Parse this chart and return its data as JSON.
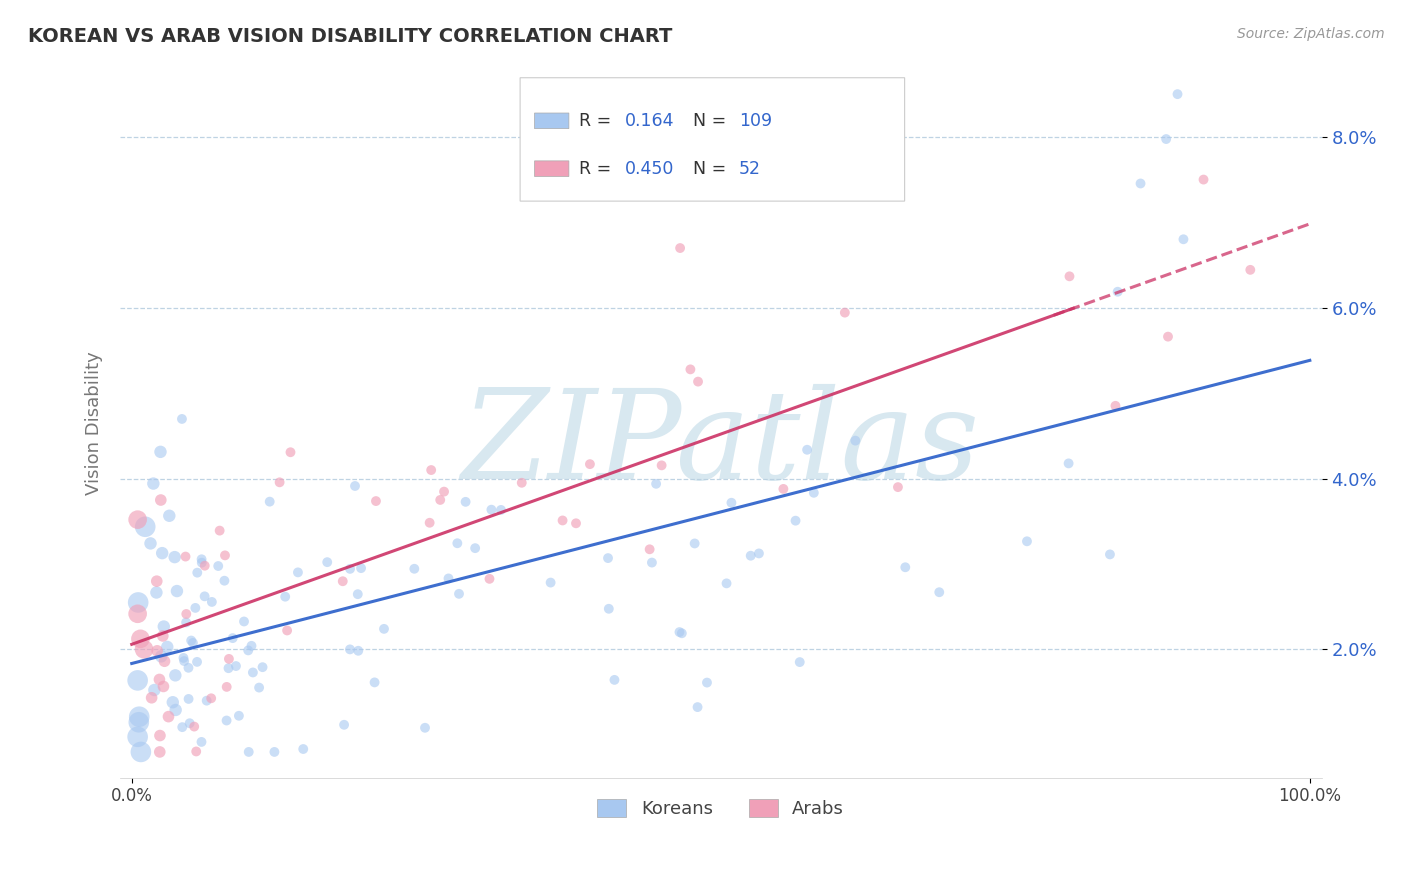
{
  "title": "KOREAN VS ARAB VISION DISABILITY CORRELATION CHART",
  "source": "Source: ZipAtlas.com",
  "ylabel": "Vision Disability",
  "korean_R": 0.164,
  "korean_N": 109,
  "arab_R": 0.45,
  "arab_N": 52,
  "korean_color": "#a8c8f0",
  "arab_color": "#f0a0b8",
  "korean_line_color": "#3366cc",
  "arab_line_color": "#cc3366",
  "background_color": "#ffffff",
  "grid_color": "#b8cfe0",
  "watermark_text": "ZIPatlas",
  "watermark_color": "#d8e8f0",
  "ylim": [
    0.005,
    0.088
  ],
  "xlim": [
    -0.01,
    1.01
  ],
  "yticks": [
    0.02,
    0.04,
    0.06,
    0.08
  ],
  "ytick_labels": [
    "2.0%",
    "4.0%",
    "6.0%",
    "8.0%"
  ],
  "legend_blue_text": "#3366cc",
  "legend_label_color": "#333333"
}
